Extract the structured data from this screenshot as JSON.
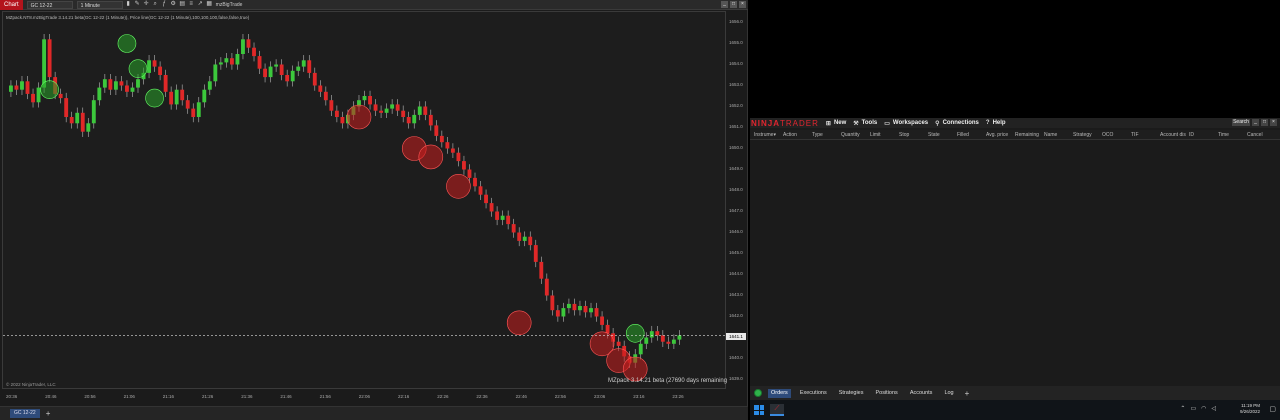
{
  "chart_window": {
    "tab": "Chart",
    "instrument": "GC 12-22",
    "interval": "1 Minute",
    "indicator_name": "mzBigTrade",
    "indicator_label": "MZpack.NT8.mzBigTrade 3.14.21 beta(GC 12-22 (1 Minute)), Price line(GC 12-22 (1 Minute),100,100,100,false,false,true)",
    "copyright": "© 2022 NinjaTrader, LLC",
    "watermark": "MZpack 3.14.21 beta  (27690 days remaining)",
    "current_price": "1641.1",
    "price_ticks": [
      "1656.0",
      "1655.0",
      "1654.0",
      "1653.0",
      "1652.0",
      "1651.0",
      "1650.0",
      "1649.0",
      "1648.0",
      "1647.0",
      "1646.0",
      "1645.0",
      "1644.0",
      "1643.0",
      "1642.0",
      "1641.0",
      "1640.0",
      "1639.0"
    ],
    "time_ticks": [
      "20:36",
      "20:46",
      "20:56",
      "21:06",
      "21:16",
      "21:26",
      "21:36",
      "21:46",
      "21:56",
      "22:06",
      "22:16",
      "22:26",
      "22:36",
      "22:46",
      "22:56",
      "23:06",
      "23:16",
      "23:26"
    ],
    "bottom_tab": "GC 12-22",
    "bottom_tab_add": "+",
    "window_controls": [
      "_",
      "□",
      "×"
    ]
  },
  "chart_data": {
    "type": "candlestick",
    "y_range": [
      1638.5,
      1656.5
    ],
    "close_series": [
      1653.0,
      1652.8,
      1653.2,
      1652.6,
      1652.2,
      1652.9,
      1655.2,
      1653.4,
      1652.6,
      1652.4,
      1651.5,
      1651.2,
      1651.7,
      1650.8,
      1651.2,
      1652.3,
      1652.9,
      1653.3,
      1652.8,
      1653.2,
      1653.0,
      1652.7,
      1652.9,
      1653.3,
      1653.6,
      1654.2,
      1653.9,
      1653.5,
      1652.7,
      1652.1,
      1652.8,
      1652.3,
      1651.9,
      1651.5,
      1652.2,
      1652.8,
      1653.2,
      1654.0,
      1654.1,
      1654.3,
      1654.0,
      1654.5,
      1655.2,
      1654.8,
      1654.4,
      1653.8,
      1653.4,
      1653.9,
      1654.0,
      1653.5,
      1653.2,
      1653.7,
      1653.9,
      1654.2,
      1653.6,
      1653.0,
      1652.7,
      1652.3,
      1651.8,
      1651.5,
      1651.2,
      1651.6,
      1652.0,
      1652.3,
      1652.5,
      1652.1,
      1651.8,
      1651.7,
      1651.9,
      1652.1,
      1651.8,
      1651.5,
      1651.2,
      1651.6,
      1652.0,
      1651.6,
      1651.1,
      1650.6,
      1650.3,
      1650.0,
      1649.8,
      1649.4,
      1649.0,
      1648.6,
      1648.2,
      1647.8,
      1647.4,
      1647.0,
      1646.6,
      1646.8,
      1646.4,
      1646.0,
      1645.6,
      1645.8,
      1645.4,
      1644.6,
      1643.8,
      1643.0,
      1642.3,
      1642.0,
      1642.4,
      1642.6,
      1642.3,
      1642.5,
      1642.2,
      1642.4,
      1642.0,
      1641.6,
      1641.2,
      1640.8,
      1640.6,
      1640.1,
      1639.8,
      1640.2,
      1640.7,
      1641.0,
      1641.3,
      1641.1,
      1640.8,
      1640.7,
      1640.9,
      1641.1
    ],
    "big_trades_sell": [
      {
        "x": 63,
        "y": 1651.5
      },
      {
        "x": 73,
        "y": 1650.0
      },
      {
        "x": 76,
        "y": 1649.6
      },
      {
        "x": 81,
        "y": 1648.2
      },
      {
        "x": 92,
        "y": 1641.7
      },
      {
        "x": 107,
        "y": 1640.7
      },
      {
        "x": 110,
        "y": 1639.9
      },
      {
        "x": 113,
        "y": 1639.5
      }
    ],
    "big_trades_buy": [
      {
        "x": 7,
        "y": 1652.8
      },
      {
        "x": 21,
        "y": 1655.0
      },
      {
        "x": 23,
        "y": 1653.8
      },
      {
        "x": 26,
        "y": 1652.4
      },
      {
        "x": 113,
        "y": 1641.2
      }
    ],
    "price_line": 1641.1
  },
  "ninjatrader": {
    "logo_ninja": "NINJA",
    "logo_trader": "TRADER",
    "menu": [
      {
        "icon": "⊞",
        "label": "New"
      },
      {
        "icon": "⚒",
        "label": "Tools"
      },
      {
        "icon": "▭",
        "label": "Workspaces"
      },
      {
        "icon": "⚲",
        "label": "Connections"
      },
      {
        "icon": "?",
        "label": "Help"
      }
    ],
    "workspace_ctrl": "Search",
    "columns": [
      "Instrume▾",
      "Action",
      "Type",
      "Quantity",
      "Limit",
      "Stop",
      "State",
      "Filled",
      "Avg. price",
      "Remaining",
      "Name",
      "Strategy",
      "OCO",
      "TIF",
      "Account dis",
      "ID",
      "Time",
      "Cancel"
    ],
    "tabs": [
      "Orders",
      "Executions",
      "Strategies",
      "Positions",
      "Accounts",
      "Log"
    ],
    "tab_add": "+"
  },
  "taskbar": {
    "time": "11:19 PM",
    "date": "9/26/2022"
  }
}
